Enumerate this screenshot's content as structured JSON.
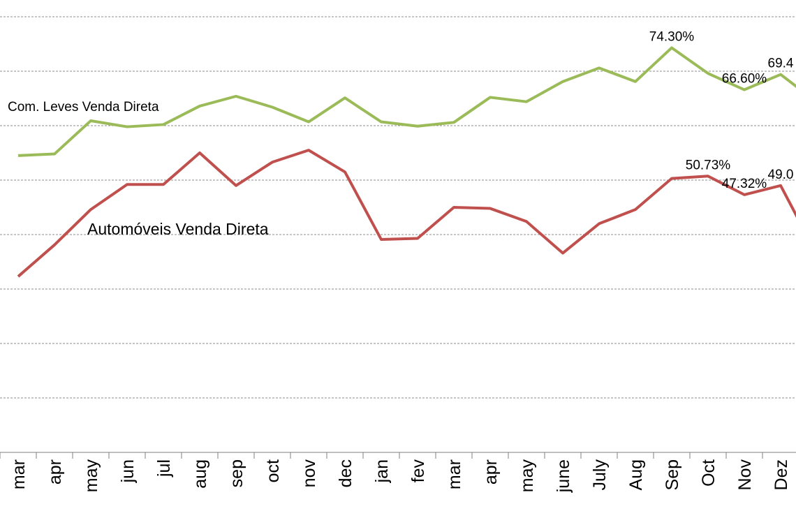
{
  "chart_data": {
    "type": "line",
    "categories": [
      "mar",
      "apr",
      "may",
      "jun",
      "jul",
      "aug",
      "sep",
      "oct",
      "nov",
      "dec",
      "jan",
      "fev",
      "mar",
      "apr",
      "may",
      "june",
      "July",
      "Aug",
      "Sep",
      "Oct",
      "Nov",
      "Dez",
      "-"
    ],
    "ylim": [
      0,
      80
    ],
    "y_grid_step": 10,
    "grid": true,
    "series": [
      {
        "name": "Com. Leves Venda Direta",
        "color": "#9bbb59",
        "values": [
          54.5,
          54.8,
          60.9,
          59.8,
          60.2,
          63.6,
          65.4,
          63.4,
          60.7,
          65.1,
          60.7,
          59.9,
          60.6,
          65.2,
          64.4,
          68.1,
          70.6,
          68.1,
          74.3,
          69.6,
          66.6,
          69.4,
          64.3
        ],
        "labels": {
          "18": "74.30%",
          "20": "66.60%",
          "21": "69.4"
        }
      },
      {
        "name": "Automóveis Venda Direta",
        "color": "#c0504d",
        "values": [
          32.3,
          38.1,
          44.6,
          49.2,
          49.2,
          55.0,
          49.0,
          53.3,
          55.5,
          51.5,
          39.1,
          39.3,
          45.0,
          44.8,
          42.4,
          36.6,
          42.0,
          44.6,
          50.3,
          50.73,
          47.32,
          49.0,
          36.3
        ],
        "labels": {
          "19": "50.73%",
          "20": "47.32%",
          "21": "49.0"
        }
      }
    ]
  }
}
